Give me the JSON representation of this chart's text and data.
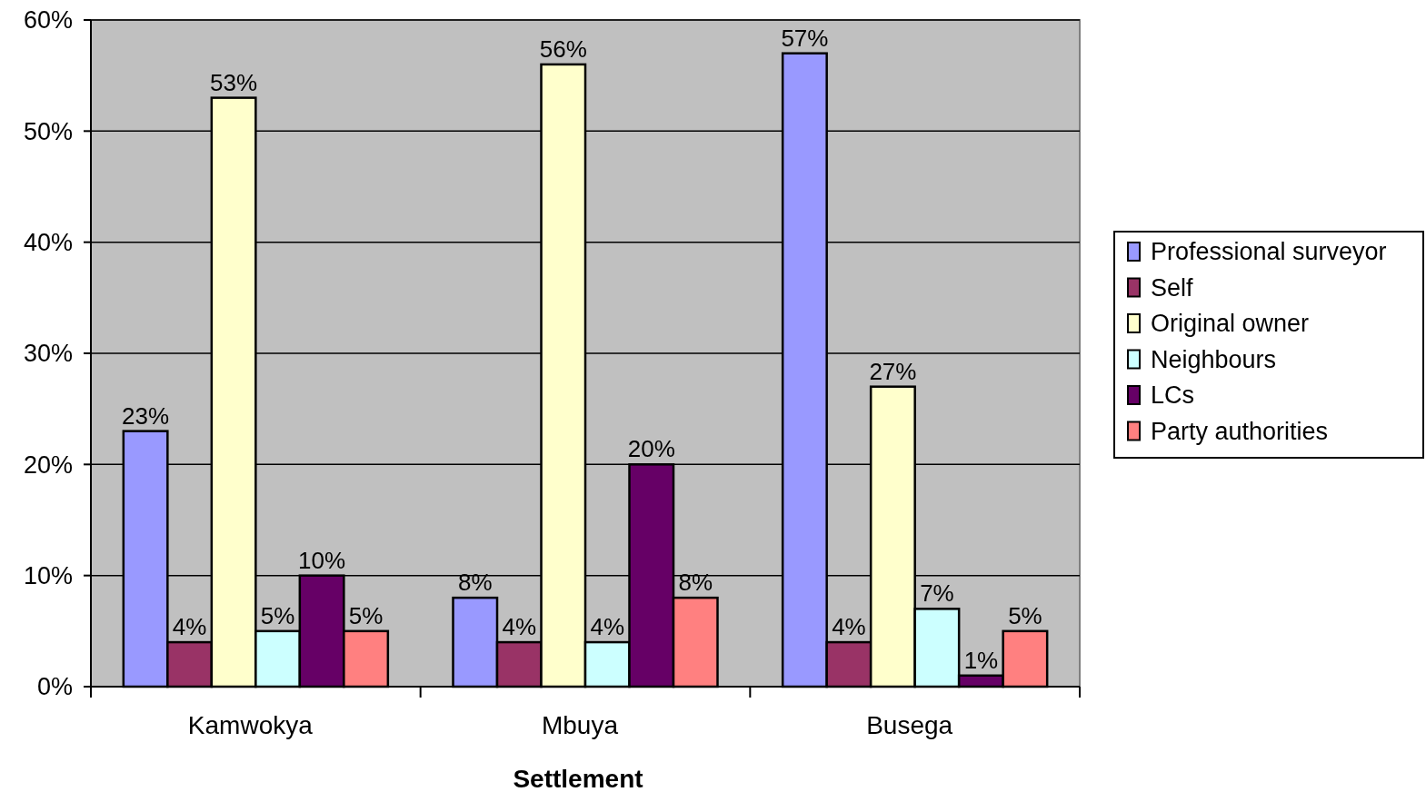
{
  "chart_data": {
    "type": "bar",
    "xlabel": "Settlement",
    "categories": [
      "Kamwokya",
      "Mbuya",
      "Busega"
    ],
    "ylim": [
      0,
      60
    ],
    "yticks": [
      {
        "value": 0,
        "label": "0%"
      },
      {
        "value": 10,
        "label": "10%"
      },
      {
        "value": 20,
        "label": "20%"
      },
      {
        "value": 30,
        "label": "30%"
      },
      {
        "value": 40,
        "label": "40%"
      },
      {
        "value": 50,
        "label": "50%"
      },
      {
        "value": 60,
        "label": "60%"
      }
    ],
    "grid": "y",
    "legend": "right",
    "series": [
      {
        "name": "Professional surveyor",
        "color": "#9999ff",
        "values": [
          23,
          8,
          57
        ],
        "value_labels": [
          "23%",
          "8%",
          "57%"
        ]
      },
      {
        "name": "Self",
        "color": "#993366",
        "values": [
          4,
          4,
          4
        ],
        "value_labels": [
          "4%",
          "4%",
          "4%"
        ]
      },
      {
        "name": "Original owner",
        "color": "#ffffcc",
        "values": [
          53,
          56,
          27
        ],
        "value_labels": [
          "53%",
          "56%",
          "27%"
        ]
      },
      {
        "name": "Neighbours",
        "color": "#ccffff",
        "values": [
          5,
          4,
          7
        ],
        "value_labels": [
          "5%",
          "4%",
          "7%"
        ]
      },
      {
        "name": "LCs",
        "color": "#660066",
        "values": [
          10,
          20,
          1
        ],
        "value_labels": [
          "10%",
          "20%",
          "1%"
        ]
      },
      {
        "name": "Party authorities",
        "color": "#ff8080",
        "values": [
          5,
          8,
          5
        ],
        "value_labels": [
          "5%",
          "8%",
          "5%"
        ]
      }
    ]
  }
}
